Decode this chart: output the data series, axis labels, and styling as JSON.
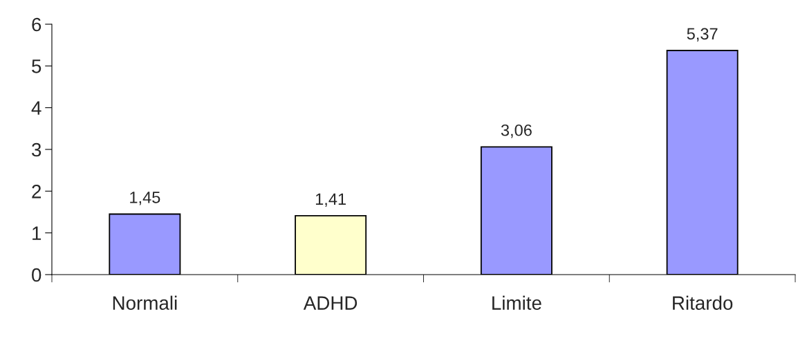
{
  "chart_data": {
    "type": "bar",
    "categories": [
      "Normali",
      "ADHD",
      "Limite",
      "Ritardo"
    ],
    "values": [
      1.45,
      1.41,
      3.06,
      5.37
    ],
    "colors": [
      "#9999ff",
      "#ffffcc",
      "#9999ff",
      "#9999ff"
    ],
    "value_labels": [
      "1,45",
      "1,41",
      "3,06",
      "5,37"
    ],
    "ylim": [
      0,
      6
    ],
    "yticks": [
      0,
      1,
      2,
      3,
      4,
      5,
      6
    ],
    "grid": false,
    "legend": false
  }
}
